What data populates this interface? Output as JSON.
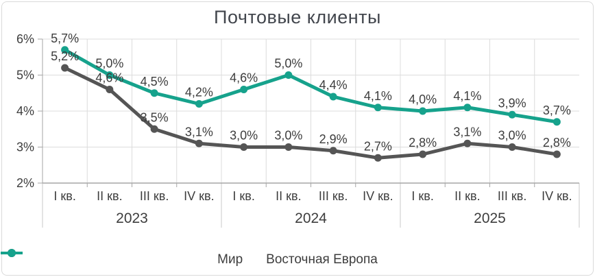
{
  "title": "Почтовые клиенты",
  "chart_data": {
    "type": "line",
    "x_categories": [
      "I кв.",
      "II кв.",
      "III кв.",
      "IV кв.",
      "I кв.",
      "II кв.",
      "III кв.",
      "IV кв.",
      "I кв.",
      "II кв.",
      "III кв.",
      "IV кв."
    ],
    "year_groups": [
      {
        "label": "2023",
        "span": 4
      },
      {
        "label": "2024",
        "span": 4
      },
      {
        "label": "2025",
        "span": 4
      }
    ],
    "series": [
      {
        "name": "Мир",
        "color": "#555555",
        "values": [
          5.2,
          4.6,
          3.5,
          3.1,
          3.0,
          3.0,
          2.9,
          2.7,
          2.8,
          3.1,
          3.0,
          2.8
        ],
        "labels": [
          "5,2%",
          "4,6%",
          "3,5%",
          "3,1%",
          "3,0%",
          "3,0%",
          "2,9%",
          "2,7%",
          "2,8%",
          "3,1%",
          "3,0%",
          "2,8%"
        ]
      },
      {
        "name": "Восточная Европа",
        "color": "#16A28C",
        "values": [
          5.7,
          5.0,
          4.5,
          4.2,
          4.6,
          5.0,
          4.4,
          4.1,
          4.0,
          4.1,
          3.9,
          3.7
        ],
        "labels": [
          "5,7%",
          "5,0%",
          "4,5%",
          "4,2%",
          "4,6%",
          "5,0%",
          "4,4%",
          "4,1%",
          "4,0%",
          "4,1%",
          "3,9%",
          "3,7%"
        ]
      }
    ],
    "y_axis": {
      "min": 2,
      "max": 6,
      "ticks": [
        6,
        5,
        4,
        3,
        2
      ],
      "tick_labels": [
        "6%",
        "5%",
        "4%",
        "3%",
        "2%"
      ]
    },
    "grid": true,
    "legend_position": "bottom"
  },
  "legend": {
    "items": [
      {
        "label": "Мир",
        "color": "#555555"
      },
      {
        "label": "Восточная Европа",
        "color": "#16A28C"
      }
    ]
  },
  "colors": {
    "grid": "#DCDCDC",
    "axis": "#A6A6A6",
    "separator": "#C9C9C9",
    "text": "#3D3D3D",
    "title": "#42464D",
    "frame": "#DADADA",
    "background": "#FFFFFF"
  }
}
